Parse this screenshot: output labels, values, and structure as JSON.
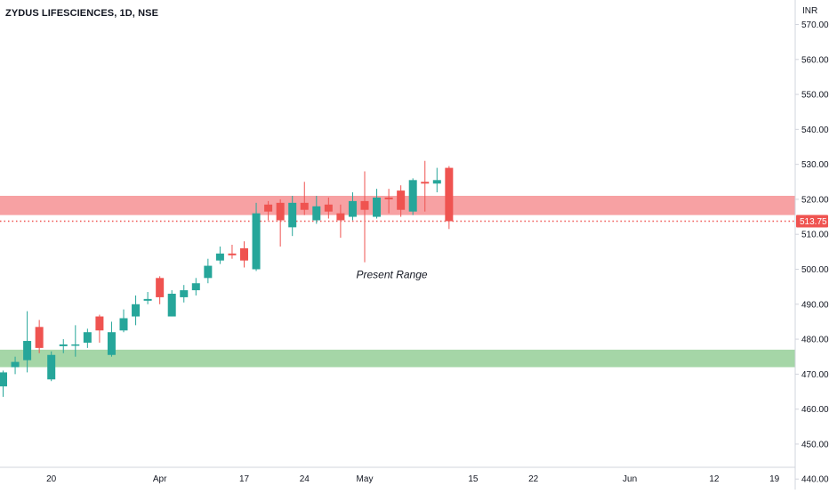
{
  "header": {
    "title": "ZYDUS LIFESCIENCES, 1D, NSE",
    "currency": "INR"
  },
  "colors": {
    "up": "#26a69a",
    "down": "#ef5350",
    "resistance_zone": "#f7a1a3",
    "support_zone": "#a5d6a7",
    "price_line": "#ef5350",
    "axis_text": "#131722",
    "axis_line": "#d1d4dc"
  },
  "chart_data": {
    "type": "candlestick",
    "symbol": "ZYDUS LIFESCIENCES",
    "interval": "1D",
    "exchange": "NSE",
    "ylim": [
      437,
      577
    ],
    "y_ticks": [
      570,
      560,
      550,
      540,
      530,
      520,
      510,
      500,
      490,
      480,
      470,
      460,
      450,
      440
    ],
    "y_tick_labels": [
      "570.00",
      "560.00",
      "550.00",
      "540.00",
      "530.00",
      "520.00",
      "510.00",
      "500.00",
      "490.00",
      "480.00",
      "470.00",
      "460.00",
      "450.00",
      "440.00"
    ],
    "x_labels": [
      {
        "index": 4,
        "label": "20"
      },
      {
        "index": 13,
        "label": "Apr"
      },
      {
        "index": 20,
        "label": "17"
      },
      {
        "index": 25,
        "label": "24"
      },
      {
        "index": 30,
        "label": "May"
      },
      {
        "index": 39,
        "label": "15"
      },
      {
        "index": 44,
        "label": "22"
      },
      {
        "index": 52,
        "label": "Jun"
      },
      {
        "index": 59,
        "label": "12"
      },
      {
        "index": 64,
        "label": "19"
      }
    ],
    "candles": [
      {
        "o": 466.5,
        "h": 471.0,
        "l": 463.5,
        "c": 470.5
      },
      {
        "o": 472.0,
        "h": 475.0,
        "l": 470.0,
        "c": 473.5
      },
      {
        "o": 474.0,
        "h": 488.0,
        "l": 470.5,
        "c": 479.5
      },
      {
        "o": 483.5,
        "h": 485.5,
        "l": 476.0,
        "c": 477.5
      },
      {
        "o": 468.5,
        "h": 476.5,
        "l": 468.0,
        "c": 475.5
      },
      {
        "o": 478.0,
        "h": 480.0,
        "l": 476.0,
        "c": 478.5
      },
      {
        "o": 478.5,
        "h": 484.0,
        "l": 475.0,
        "c": 478.5
      },
      {
        "o": 479.0,
        "h": 483.0,
        "l": 477.5,
        "c": 482.0
      },
      {
        "o": 486.5,
        "h": 487.0,
        "l": 479.0,
        "c": 482.5
      },
      {
        "o": 475.5,
        "h": 485.0,
        "l": 475.0,
        "c": 482.0
      },
      {
        "o": 482.5,
        "h": 488.5,
        "l": 482.0,
        "c": 486.0
      },
      {
        "o": 486.5,
        "h": 492.5,
        "l": 484.0,
        "c": 490.0
      },
      {
        "o": 491.0,
        "h": 493.5,
        "l": 490.0,
        "c": 491.5
      },
      {
        "o": 497.5,
        "h": 498.0,
        "l": 490.0,
        "c": 492.0
      },
      {
        "o": 486.5,
        "h": 494.0,
        "l": 486.5,
        "c": 493.0
      },
      {
        "o": 492.0,
        "h": 495.5,
        "l": 490.5,
        "c": 494.0
      },
      {
        "o": 494.0,
        "h": 497.5,
        "l": 492.5,
        "c": 496.0
      },
      {
        "o": 497.5,
        "h": 503.0,
        "l": 496.0,
        "c": 501.0
      },
      {
        "o": 502.5,
        "h": 506.5,
        "l": 501.5,
        "c": 504.5
      },
      {
        "o": 504.5,
        "h": 507.0,
        "l": 503.0,
        "c": 504.0
      },
      {
        "o": 506.0,
        "h": 508.0,
        "l": 500.5,
        "c": 502.5
      },
      {
        "o": 500.0,
        "h": 519.0,
        "l": 499.5,
        "c": 516.0
      },
      {
        "o": 518.5,
        "h": 519.5,
        "l": 514.0,
        "c": 516.5
      },
      {
        "o": 519.0,
        "h": 520.0,
        "l": 506.5,
        "c": 514.0
      },
      {
        "o": 512.0,
        "h": 521.0,
        "l": 509.5,
        "c": 519.0
      },
      {
        "o": 519.0,
        "h": 525.0,
        "l": 515.5,
        "c": 517.0
      },
      {
        "o": 514.0,
        "h": 521.0,
        "l": 513.0,
        "c": 518.0
      },
      {
        "o": 518.5,
        "h": 520.5,
        "l": 514.5,
        "c": 516.5
      },
      {
        "o": 516.0,
        "h": 518.5,
        "l": 509.0,
        "c": 514.0
      },
      {
        "o": 515.0,
        "h": 522.0,
        "l": 514.0,
        "c": 519.5
      },
      {
        "o": 519.5,
        "h": 528.0,
        "l": 502.0,
        "c": 517.0
      },
      {
        "o": 515.0,
        "h": 523.0,
        "l": 514.5,
        "c": 520.5
      },
      {
        "o": 520.5,
        "h": 523.0,
        "l": 516.0,
        "c": 520.0
      },
      {
        "o": 522.5,
        "h": 524.0,
        "l": 515.0,
        "c": 517.0
      },
      {
        "o": 516.5,
        "h": 526.0,
        "l": 515.5,
        "c": 525.5
      },
      {
        "o": 525.0,
        "h": 531.0,
        "l": 516.5,
        "c": 524.5
      },
      {
        "o": 524.5,
        "h": 529.0,
        "l": 522.0,
        "c": 525.5
      },
      {
        "o": 529.0,
        "h": 529.5,
        "l": 511.5,
        "c": 513.75
      }
    ],
    "zones": [
      {
        "type": "resistance",
        "from": 515.5,
        "to": 521.0
      },
      {
        "type": "support",
        "from": 472.0,
        "to": 477.0
      }
    ],
    "last_price": 513.75,
    "last_price_label": "513.75",
    "annotations": [
      {
        "text": "Present Range",
        "x_index": 29.3,
        "y": 497.5
      }
    ]
  }
}
